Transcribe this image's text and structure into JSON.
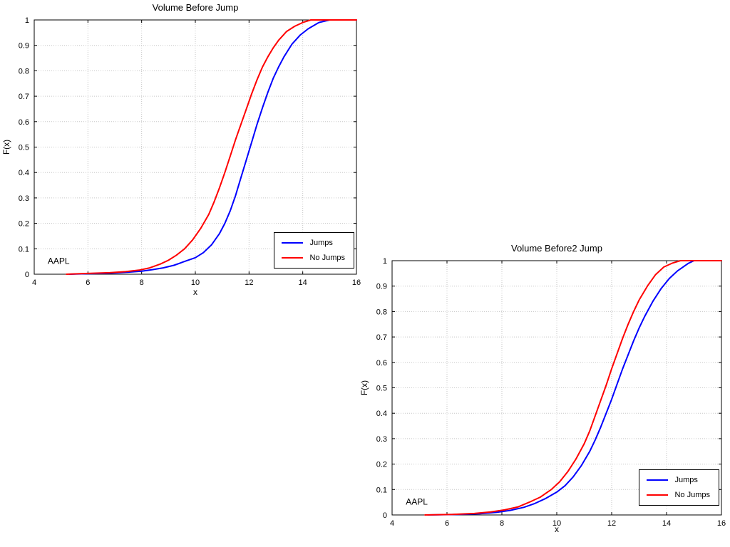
{
  "page": {
    "background": "#ffffff"
  },
  "chart_data": [
    {
      "type": "line",
      "title": "Volume Before Jump",
      "xlabel": "x",
      "ylabel": "F(x)",
      "xlim": [
        4,
        16
      ],
      "ylim": [
        0,
        1
      ],
      "xticks": [
        4,
        6,
        8,
        10,
        12,
        14,
        16
      ],
      "yticks": [
        0,
        0.1,
        0.2,
        0.3,
        0.4,
        0.5,
        0.6,
        0.7,
        0.8,
        0.9,
        1
      ],
      "grid": true,
      "legend_position": "inside-bottom-right",
      "annotation": {
        "text": "AAPL",
        "x": 4.5,
        "y": 0.04
      },
      "series": [
        {
          "name": "Jumps",
          "color": "#0000ff",
          "x": [
            5.3,
            6.0,
            6.8,
            7.5,
            8.0,
            8.4,
            8.8,
            9.2,
            9.6,
            10.0,
            10.3,
            10.6,
            10.9,
            11.1,
            11.3,
            11.5,
            11.7,
            11.9,
            12.1,
            12.3,
            12.5,
            12.7,
            12.9,
            13.1,
            13.3,
            13.6,
            13.9,
            14.2,
            14.6,
            15.0,
            16.0
          ],
          "y": [
            0.0,
            0.002,
            0.004,
            0.008,
            0.012,
            0.018,
            0.025,
            0.035,
            0.05,
            0.065,
            0.085,
            0.115,
            0.16,
            0.2,
            0.25,
            0.31,
            0.38,
            0.45,
            0.52,
            0.59,
            0.655,
            0.715,
            0.77,
            0.815,
            0.855,
            0.905,
            0.94,
            0.965,
            0.99,
            1.0,
            1.0
          ]
        },
        {
          "name": "No Jumps",
          "color": "#ff0000",
          "x": [
            5.2,
            6.0,
            6.8,
            7.4,
            7.9,
            8.3,
            8.7,
            9.0,
            9.3,
            9.6,
            9.9,
            10.2,
            10.5,
            10.7,
            10.9,
            11.1,
            11.3,
            11.5,
            11.7,
            11.9,
            12.1,
            12.3,
            12.5,
            12.7,
            12.9,
            13.1,
            13.4,
            13.7,
            14.0,
            14.3,
            16.0
          ],
          "y": [
            0.0,
            0.003,
            0.006,
            0.01,
            0.016,
            0.025,
            0.04,
            0.055,
            0.075,
            0.1,
            0.135,
            0.18,
            0.235,
            0.285,
            0.34,
            0.4,
            0.465,
            0.53,
            0.59,
            0.65,
            0.71,
            0.765,
            0.815,
            0.855,
            0.89,
            0.92,
            0.955,
            0.975,
            0.99,
            1.0,
            1.0
          ]
        }
      ]
    },
    {
      "type": "line",
      "title": "Volume Before2 Jump",
      "xlabel": "x",
      "ylabel": "F(x)",
      "xlim": [
        4,
        16
      ],
      "ylim": [
        0,
        1
      ],
      "xticks": [
        4,
        6,
        8,
        10,
        12,
        14,
        16
      ],
      "yticks": [
        0,
        0.1,
        0.2,
        0.3,
        0.4,
        0.5,
        0.6,
        0.7,
        0.8,
        0.9,
        1
      ],
      "grid": true,
      "legend_position": "inside-bottom-right",
      "annotation": {
        "text": "AAPL",
        "x": 4.5,
        "y": 0.04
      },
      "series": [
        {
          "name": "Jumps",
          "color": "#0000ff",
          "x": [
            5.3,
            6.4,
            7.2,
            7.8,
            8.3,
            8.8,
            9.2,
            9.6,
            10.0,
            10.3,
            10.6,
            10.9,
            11.2,
            11.4,
            11.6,
            11.8,
            12.0,
            12.2,
            12.4,
            12.6,
            12.8,
            13.0,
            13.2,
            13.5,
            13.8,
            14.1,
            14.4,
            14.8,
            15.0,
            16.0
          ],
          "y": [
            0.0,
            0.002,
            0.005,
            0.01,
            0.018,
            0.03,
            0.045,
            0.065,
            0.09,
            0.115,
            0.15,
            0.195,
            0.25,
            0.295,
            0.345,
            0.4,
            0.455,
            0.515,
            0.575,
            0.63,
            0.685,
            0.735,
            0.78,
            0.84,
            0.89,
            0.93,
            0.96,
            0.99,
            1.0,
            1.0
          ]
        },
        {
          "name": "No Jumps",
          "color": "#ff0000",
          "x": [
            5.2,
            6.2,
            7.0,
            7.6,
            8.1,
            8.6,
            9.0,
            9.4,
            9.8,
            10.1,
            10.4,
            10.7,
            11.0,
            11.2,
            11.4,
            11.6,
            11.8,
            12.0,
            12.2,
            12.4,
            12.6,
            12.8,
            13.0,
            13.3,
            13.6,
            13.9,
            14.2,
            14.5,
            16.0
          ],
          "y": [
            0.0,
            0.002,
            0.006,
            0.012,
            0.02,
            0.032,
            0.05,
            0.07,
            0.1,
            0.13,
            0.17,
            0.22,
            0.28,
            0.33,
            0.39,
            0.45,
            0.51,
            0.575,
            0.635,
            0.695,
            0.75,
            0.8,
            0.845,
            0.9,
            0.945,
            0.975,
            0.99,
            1.0,
            1.0
          ]
        }
      ]
    }
  ],
  "style": {
    "grid_color": "#c7c7c7",
    "axis_color": "#000000",
    "background": "#ffffff"
  }
}
